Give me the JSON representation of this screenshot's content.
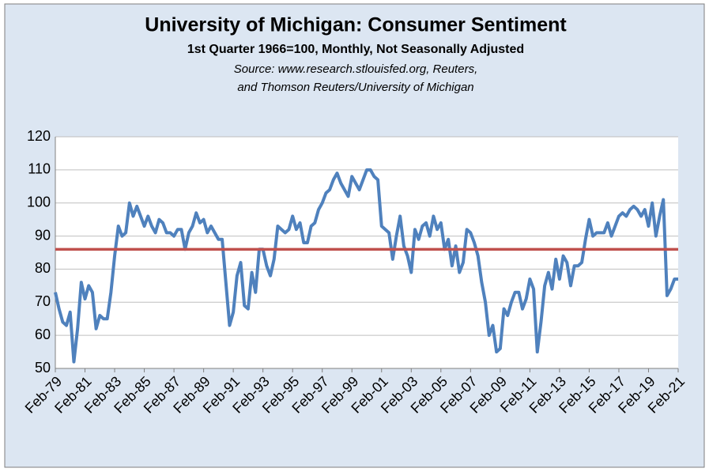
{
  "chart_data": {
    "type": "line",
    "title": "University of Michigan: Consumer Sentiment",
    "subtitle": "1st Quarter 1966=100, Monthly, Not Seasonally Adjusted",
    "source": [
      "Source: www.research.stlouisfed.org, Reuters,",
      "and Thomson Reuters/University of Michigan"
    ],
    "categories": [
      "Feb-79",
      null,
      null,
      null,
      null,
      null,
      null,
      null,
      "Feb-81",
      null,
      null,
      null,
      null,
      null,
      null,
      null,
      "Feb-83",
      null,
      null,
      null,
      null,
      null,
      null,
      null,
      "Feb-85",
      null,
      null,
      null,
      null,
      null,
      null,
      null,
      "Feb-87",
      null,
      null,
      null,
      null,
      null,
      null,
      null,
      "Feb-89",
      null,
      null,
      null,
      null,
      null,
      null,
      null,
      "Feb-91",
      null,
      null,
      null,
      null,
      null,
      null,
      null,
      "Feb-93",
      null,
      null,
      null,
      null,
      null,
      null,
      null,
      "Feb-95",
      null,
      null,
      null,
      null,
      null,
      null,
      null,
      "Feb-97",
      null,
      null,
      null,
      null,
      null,
      null,
      null,
      "Feb-99",
      null,
      null,
      null,
      null,
      null,
      null,
      null,
      "Feb-01",
      null,
      null,
      null,
      null,
      null,
      null,
      null,
      "Feb-03",
      null,
      null,
      null,
      null,
      null,
      null,
      null,
      "Feb-05",
      null,
      null,
      null,
      null,
      null,
      null,
      null,
      "Feb-07",
      null,
      null,
      null,
      null,
      null,
      null,
      null,
      "Feb-09",
      null,
      null,
      null,
      null,
      null,
      null,
      null,
      "Feb-11",
      null,
      null,
      null,
      null,
      null,
      null,
      null,
      "Feb-13",
      null,
      null,
      null,
      null,
      null,
      null,
      null,
      "Feb-15",
      null,
      null,
      null,
      null,
      null,
      null,
      null,
      "Feb-17",
      null,
      null,
      null,
      null,
      null,
      null,
      null,
      "Feb-19",
      null,
      null,
      null,
      null,
      null,
      null,
      null,
      "Feb-21"
    ],
    "series": [
      {
        "color": "#4f81bd",
        "values": [
          73,
          68,
          64,
          63,
          67,
          52,
          62,
          76,
          71,
          75,
          73,
          62,
          66,
          65,
          65,
          73,
          84,
          93,
          90,
          91,
          100,
          96,
          99,
          96,
          93,
          96,
          93,
          91,
          95,
          94,
          91,
          91,
          90,
          92,
          92,
          86,
          91,
          93,
          97,
          94,
          95,
          91,
          93,
          91,
          89,
          89,
          76,
          63,
          67,
          78,
          82,
          69,
          68,
          79,
          73,
          86,
          86,
          81,
          78,
          83,
          93,
          92,
          91,
          92,
          96,
          92,
          94,
          88,
          88,
          93,
          94,
          98,
          100,
          103,
          104,
          107,
          109,
          106,
          104,
          102,
          108,
          106,
          104,
          107,
          110,
          110,
          108,
          107,
          93,
          92,
          91,
          83,
          90,
          96,
          87,
          84,
          79,
          92,
          89,
          93,
          94,
          90,
          96,
          92,
          94,
          86,
          89,
          81,
          87,
          79,
          82,
          92,
          91,
          88,
          84,
          76,
          70,
          60,
          63,
          55,
          56,
          68,
          66,
          70,
          73,
          73,
          68,
          71,
          77,
          74,
          55,
          64,
          75,
          79,
          74,
          83,
          77,
          84,
          82,
          75,
          81,
          81,
          82,
          89,
          95,
          90,
          91,
          91,
          91,
          94,
          90,
          93,
          96,
          97,
          96,
          98,
          99,
          98,
          96,
          98,
          93,
          100,
          90,
          96,
          101,
          72,
          74,
          77,
          77
        ]
      }
    ],
    "hline": {
      "value": 86,
      "color": "#c0504d"
    },
    "ylim": [
      50,
      120
    ],
    "yticks": [
      50,
      60,
      70,
      80,
      90,
      100,
      110,
      120
    ],
    "grid": true
  }
}
